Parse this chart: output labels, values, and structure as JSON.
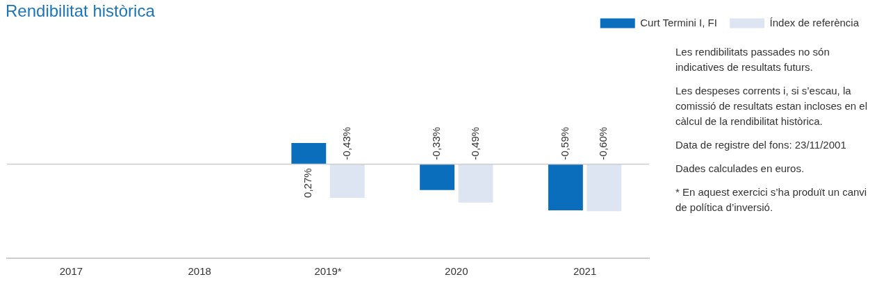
{
  "chart_data": {
    "type": "bar",
    "title": "Rendibilitat històrica",
    "categories": [
      "2017",
      "2018",
      "2019*",
      "2020",
      "2021"
    ],
    "series": [
      {
        "name": "Curt Termini I, FI",
        "color": "#0a6ebd",
        "values": [
          null,
          null,
          0.27,
          -0.33,
          -0.59
        ],
        "value_labels": [
          null,
          null,
          "0,27%",
          "-0,33%",
          "-0,59%"
        ]
      },
      {
        "name": "Índex de referència",
        "color": "#dde5f2",
        "values": [
          null,
          null,
          -0.43,
          -0.49,
          -0.6
        ],
        "value_labels": [
          null,
          null,
          "-0,43%",
          "-0,49%",
          "-0,60%"
        ]
      }
    ],
    "legend": "top right",
    "annotations": [
      "Les rendibilitats passades no són indicatives de resultats futurs.",
      "Les despeses corrents i, si s’escau, la comissió de resultats estan incloses en el càlcul de la rendibilitat històrica.",
      "Data de registre del fons: 23/11/2001",
      "Dades calculades en euros.",
      "* En aquest exercici s’ha produït un canvi de política d’inversió."
    ]
  }
}
